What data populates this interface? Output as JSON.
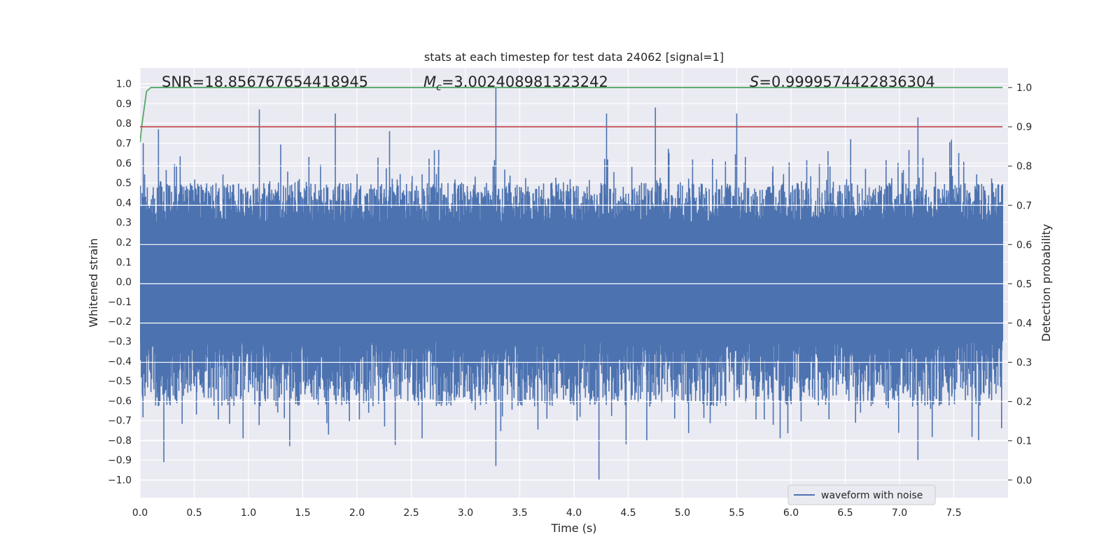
{
  "chart_data": {
    "type": "line",
    "title": "stats at each timestep for test data 24062 [signal=1]",
    "xlabel": "Time (s)",
    "ylabel_left": "Whitened strain",
    "ylabel_right": "Detection probability",
    "xlim": [
      0.0,
      8.0
    ],
    "ylim_left": [
      -1.09,
      1.08
    ],
    "ylim_right": [
      -0.045,
      1.05
    ],
    "x_ticks": [
      0.0,
      0.5,
      1.0,
      1.5,
      2.0,
      2.5,
      3.0,
      3.5,
      4.0,
      4.5,
      5.0,
      5.5,
      6.0,
      6.5,
      7.0,
      7.5
    ],
    "x_tick_labels": [
      "0.0",
      "0.5",
      "1.0",
      "1.5",
      "2.0",
      "2.5",
      "3.0",
      "3.5",
      "4.0",
      "4.5",
      "5.0",
      "5.5",
      "6.0",
      "6.5",
      "7.0",
      "7.5"
    ],
    "y_left_ticks": [
      1.0,
      0.9,
      0.8,
      0.7,
      0.6,
      0.5,
      0.4,
      0.3,
      0.2,
      0.1,
      0.0,
      -0.1,
      -0.2,
      -0.3,
      -0.4,
      -0.5,
      -0.6,
      -0.7,
      -0.8,
      -0.9,
      -1.0
    ],
    "y_left_tick_labels": [
      "1.0",
      "0.9",
      "0.8",
      "0.7",
      "0.6",
      "0.5",
      "0.4",
      "0.3",
      "0.2",
      "0.1",
      "0.0",
      "−0.1",
      "−0.2",
      "−0.3",
      "−0.4",
      "−0.5",
      "−0.6",
      "−0.7",
      "−0.8",
      "−0.9",
      "−1.0"
    ],
    "y_right_ticks": [
      1.0,
      0.9,
      0.8,
      0.7,
      0.6,
      0.5,
      0.4,
      0.3,
      0.2,
      0.1,
      0.0
    ],
    "y_right_tick_labels": [
      "1.0",
      "0.9",
      "0.8",
      "0.7",
      "0.6",
      "0.5",
      "0.4",
      "0.3",
      "0.2",
      "0.1",
      "0.0"
    ],
    "grid": true,
    "legend": {
      "location": "lower-right",
      "entries": [
        "waveform with noise"
      ]
    },
    "annotations": {
      "snr": "SNR=18.856767654418945",
      "mc_symbol": "M",
      "mc_subscript": "c",
      "mc_value": "=3.002408981323242",
      "s_symbol": "S",
      "s_value": "=0.9999574422836304"
    },
    "series": [
      {
        "name": "waveform with noise",
        "axis": "left",
        "color": "#4c72b0",
        "duration": 7.95,
        "envelope": {
          "typical_max": 0.45,
          "typical_min": -0.47,
          "core_max": 0.3,
          "core_min": -0.3
        },
        "spikes": [
          {
            "x": 0.03,
            "y": 0.7
          },
          {
            "x": 0.22,
            "y": -0.91
          },
          {
            "x": 0.17,
            "y": 0.77
          },
          {
            "x": 1.1,
            "y": 0.87
          },
          {
            "x": 1.38,
            "y": -0.83
          },
          {
            "x": 1.8,
            "y": 0.85
          },
          {
            "x": 3.28,
            "y": 0.98
          },
          {
            "x": 3.28,
            "y": -0.93
          },
          {
            "x": 4.23,
            "y": -1.0
          },
          {
            "x": 4.3,
            "y": 0.85
          },
          {
            "x": 4.48,
            "y": -0.82
          },
          {
            "x": 4.75,
            "y": 0.88
          },
          {
            "x": 5.5,
            "y": 0.85
          },
          {
            "x": 7.17,
            "y": 0.83
          },
          {
            "x": 7.17,
            "y": -0.9
          },
          {
            "x": 0.95,
            "y": -0.79
          },
          {
            "x": 2.6,
            "y": -0.79
          },
          {
            "x": 5.9,
            "y": -0.79
          },
          {
            "x": 2.3,
            "y": 0.76
          },
          {
            "x": 6.55,
            "y": 0.72
          }
        ]
      },
      {
        "name": "",
        "axis": "right",
        "color": "#55a868",
        "x": [
          0.0,
          0.02,
          0.04,
          0.06,
          0.1,
          0.5,
          7.95
        ],
        "y": [
          0.86,
          0.91,
          0.95,
          0.99,
          1.0,
          1.0,
          1.0
        ]
      },
      {
        "name": "",
        "axis": "right",
        "color": "#c44e52",
        "x": [
          0.0,
          7.95
        ],
        "y": [
          0.9,
          0.9
        ]
      }
    ]
  }
}
